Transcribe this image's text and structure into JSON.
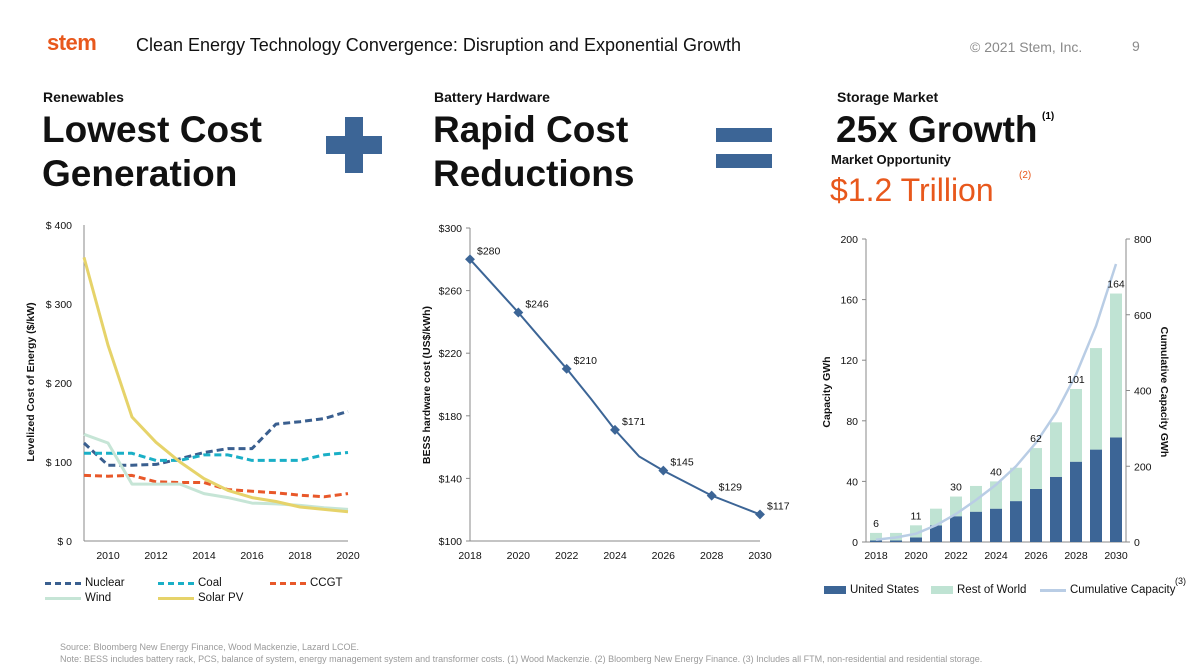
{
  "header": {
    "logo": "stem",
    "title": "Clean Energy Technology Convergence: Disruption and Exponential Growth",
    "copyright": "© 2021 Stem, Inc.",
    "page": "9"
  },
  "panels": {
    "renewables": {
      "label": "Renewables",
      "line1": "Lowest Cost",
      "line2": "Generation"
    },
    "battery": {
      "label": "Battery Hardware",
      "line1": "Rapid Cost",
      "line2": "Reductions"
    },
    "storage": {
      "label": "Storage Market",
      "headline": "25x Growth",
      "note1": "(1)",
      "sublabel": "Market Opportunity",
      "value": "$1.2 Trillion",
      "note2": "(2)"
    }
  },
  "colors": {
    "accent": "#e8581c",
    "symbol": "#3c6596",
    "nuclear": "#3a5f8f",
    "coal": "#1aafc6",
    "ccgt": "#e8582a",
    "wind": "#c6e5d6",
    "solar": "#e6d36a",
    "us": "#3c6596",
    "row": "#bfe3d3",
    "cumulative": "#b9cde5",
    "line": "#3c6596"
  },
  "chart_data": [
    {
      "type": "line",
      "title": "",
      "xlabel": "",
      "ylabel": "Levelized Cost of Energy ($/kW)",
      "xlim": [
        2009,
        2020
      ],
      "ylim": [
        0,
        400
      ],
      "x_ticks": [
        "2010",
        "2012",
        "2014",
        "2016",
        "2018",
        "2020"
      ],
      "y_ticks": [
        "$ 0",
        "$ 100",
        "$ 200",
        "$ 300",
        "$ 400"
      ],
      "series": [
        {
          "name": "Nuclear",
          "style": "dashed",
          "x": [
            2009,
            2010,
            2011,
            2012,
            2013,
            2014,
            2015,
            2016,
            2017,
            2018,
            2019,
            2020
          ],
          "values": [
            124,
            96,
            96,
            97,
            104,
            112,
            117,
            117,
            148,
            151,
            155,
            164
          ]
        },
        {
          "name": "Coal",
          "style": "dashed",
          "x": [
            2009,
            2010,
            2011,
            2012,
            2013,
            2014,
            2015,
            2016,
            2017,
            2018,
            2019,
            2020
          ],
          "values": [
            111,
            111,
            111,
            102,
            102,
            109,
            109,
            102,
            102,
            102,
            109,
            112
          ]
        },
        {
          "name": "CCGT",
          "style": "dashed",
          "x": [
            2009,
            2010,
            2011,
            2012,
            2013,
            2014,
            2015,
            2016,
            2017,
            2018,
            2019,
            2020
          ],
          "values": [
            83,
            82,
            83,
            75,
            74,
            74,
            65,
            63,
            61,
            58,
            56,
            60
          ]
        },
        {
          "name": "Wind",
          "style": "solid",
          "x": [
            2009,
            2010,
            2011,
            2012,
            2013,
            2014,
            2015,
            2016,
            2017,
            2018,
            2019,
            2020
          ],
          "values": [
            135,
            124,
            72,
            72,
            72,
            60,
            55,
            48,
            47,
            45,
            42,
            40
          ]
        },
        {
          "name": "Solar PV",
          "style": "solid",
          "x": [
            2009,
            2010,
            2011,
            2012,
            2013,
            2014,
            2015,
            2016,
            2017,
            2018,
            2019,
            2020
          ],
          "values": [
            359,
            248,
            157,
            125,
            100,
            79,
            64,
            55,
            50,
            43,
            40,
            37
          ]
        }
      ],
      "legend": [
        "Nuclear",
        "Coal",
        "CCGT",
        "Wind",
        "Solar PV"
      ],
      "legend_position": "bottom"
    },
    {
      "type": "line",
      "title": "",
      "xlabel": "",
      "ylabel": "BESS hardware cost (US$/kWh)",
      "xlim": [
        2018,
        2030
      ],
      "ylim": [
        100,
        300
      ],
      "x_ticks": [
        "2018",
        "2020",
        "2022",
        "2024",
        "2026",
        "2028",
        "2030"
      ],
      "y_ticks": [
        "$100",
        "$140",
        "$180",
        "$220",
        "$260",
        "$300"
      ],
      "x": [
        2018,
        2019,
        2020,
        2021,
        2022,
        2023,
        2024,
        2025,
        2026,
        2027,
        2028,
        2029,
        2030
      ],
      "values": [
        280,
        263,
        246,
        228,
        210,
        191,
        171,
        154,
        145,
        137,
        129,
        123,
        117
      ],
      "marked": [
        {
          "x": 2018,
          "label": "$280"
        },
        {
          "x": 2020,
          "label": "$246"
        },
        {
          "x": 2022,
          "label": "$210"
        },
        {
          "x": 2024,
          "label": "$171"
        },
        {
          "x": 2026,
          "label": "$145"
        },
        {
          "x": 2028,
          "label": "$129"
        },
        {
          "x": 2030,
          "label": "$117"
        }
      ]
    },
    {
      "type": "bar",
      "title": "",
      "xlabel": "",
      "ylabel": "Capacity GWh",
      "y2label": "Cumulative Capacity GWh",
      "ylim": [
        0,
        200
      ],
      "y2lim": [
        0,
        800
      ],
      "y_ticks": [
        "0",
        "40",
        "80",
        "120",
        "160",
        "200"
      ],
      "y2_ticks": [
        "0",
        "200",
        "400",
        "600",
        "800"
      ],
      "x_ticks": [
        "2018",
        "2020",
        "2022",
        "2024",
        "2026",
        "2028",
        "2030"
      ],
      "categories": [
        "2018",
        "2019",
        "2020",
        "2021",
        "2022",
        "2023",
        "2024",
        "2025",
        "2026",
        "2027",
        "2028",
        "2029",
        "2030"
      ],
      "series": [
        {
          "name": "United States",
          "values": [
            1,
            1,
            3,
            11,
            17,
            20,
            22,
            27,
            35,
            43,
            53,
            61,
            69
          ]
        },
        {
          "name": "Rest of World",
          "values": [
            5,
            5,
            8,
            11,
            13,
            17,
            18,
            22,
            27,
            36,
            48,
            67,
            95
          ]
        },
        {
          "name": "Cumulative Capacity",
          "axis": "right",
          "values": [
            6,
            12,
            22,
            44,
            74,
            111,
            151,
            200,
            262,
            341,
            442,
            570,
            734
          ]
        }
      ],
      "data_labels": [
        {
          "category": "2018",
          "label": "6"
        },
        {
          "category": "2020",
          "label": "11"
        },
        {
          "category": "2022",
          "label": "30"
        },
        {
          "category": "2024",
          "label": "40"
        },
        {
          "category": "2026",
          "label": "62"
        },
        {
          "category": "2028",
          "label": "101"
        },
        {
          "category": "2030",
          "label": "164"
        }
      ],
      "legend": [
        "United States",
        "Rest of World",
        "Cumulative Capacity"
      ],
      "legend_note": "(3)",
      "legend_position": "bottom"
    }
  ],
  "footer": {
    "source": "Source: Bloomberg New Energy Finance, Wood Mackenzie, Lazard LCOE.",
    "note": "Note: BESS includes battery rack, PCS,  balance of system, energy management  system and transformer costs. (1) Wood Mackenzie. (2) Bloomberg New Energy Finance. (3) Includes all FTM,  non-residential and residential storage."
  }
}
